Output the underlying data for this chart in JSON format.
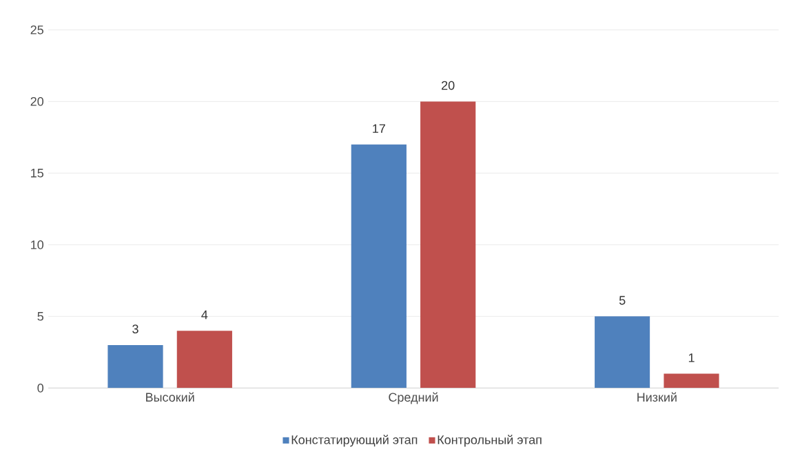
{
  "chart_data": {
    "type": "bar",
    "categories": [
      "Высокий",
      "Средний",
      "Низкий"
    ],
    "series": [
      {
        "name": "Констатирующий этап",
        "color": "#4f81bd",
        "values": [
          3,
          17,
          5
        ]
      },
      {
        "name": "Контрольный этап",
        "color": "#c0504d",
        "values": [
          4,
          20,
          1
        ]
      }
    ],
    "ylim": [
      0,
      25
    ],
    "yticks": [
      0,
      5,
      10,
      15,
      20,
      25
    ],
    "grid": "y",
    "legend": "bottom",
    "data_labels": true
  }
}
